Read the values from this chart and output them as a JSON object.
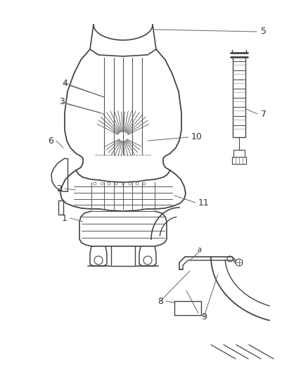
{
  "bg_color": "#ffffff",
  "line_color": "#444444",
  "label_color": "#333333",
  "figsize": [
    4.38,
    5.33
  ],
  "dpi": 100
}
